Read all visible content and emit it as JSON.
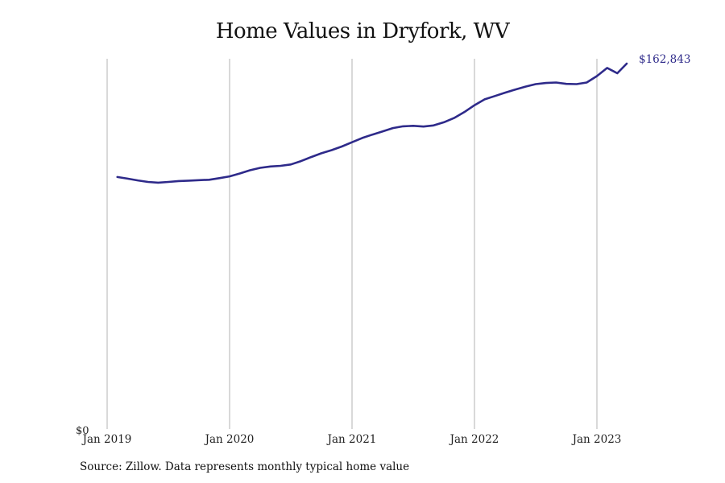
{
  "chart": {
    "title": "Home Values in Dryfork, WV",
    "source": "Source: Zillow. Data represents monthly typical home value",
    "y_zero_label": "$0",
    "end_label": "$162,843",
    "line_color": "#2e2a8a",
    "grid_color": "#b3b3b3"
  },
  "chart_data": {
    "type": "line",
    "title": "Home Values in Dryfork, WV",
    "xlabel": "",
    "ylabel": "",
    "ylim": [
      0,
      162843
    ],
    "grid": "vertical",
    "legend": "none",
    "x_ticks": [
      "Jan 2019",
      "Jan 2020",
      "Jan 2021",
      "Jan 2022",
      "Jan 2023"
    ],
    "y_ticks": [
      "$0"
    ],
    "annotations": [
      "$162,843"
    ],
    "series": [
      {
        "name": "Typical home value",
        "x": [
          "2019-02",
          "2019-03",
          "2019-04",
          "2019-05",
          "2019-06",
          "2019-07",
          "2019-08",
          "2019-09",
          "2019-10",
          "2019-11",
          "2019-12",
          "2020-01",
          "2020-02",
          "2020-03",
          "2020-04",
          "2020-05",
          "2020-06",
          "2020-07",
          "2020-08",
          "2020-09",
          "2020-10",
          "2020-11",
          "2020-12",
          "2021-01",
          "2021-02",
          "2021-03",
          "2021-04",
          "2021-05",
          "2021-06",
          "2021-07",
          "2021-08",
          "2021-09",
          "2021-10",
          "2021-11",
          "2021-12",
          "2022-01",
          "2022-02",
          "2022-03",
          "2022-04",
          "2022-05",
          "2022-06",
          "2022-07",
          "2022-08",
          "2022-09",
          "2022-10",
          "2022-11",
          "2022-12",
          "2023-01",
          "2023-02",
          "2023-03",
          "2023-04"
        ],
        "values": [
          112300,
          111600,
          110800,
          110100,
          109800,
          110100,
          110500,
          110700,
          110900,
          111100,
          111800,
          112600,
          113900,
          115300,
          116400,
          117000,
          117300,
          117900,
          119400,
          121200,
          122900,
          124300,
          125900,
          127800,
          129700,
          131200,
          132600,
          134100,
          134900,
          135100,
          134800,
          135300,
          136700,
          138600,
          141200,
          144300,
          146900,
          148400,
          149900,
          151300,
          152600,
          153700,
          154200,
          154400,
          153800,
          153700,
          154400,
          157300,
          160900,
          162843,
          162843
        ]
      }
    ]
  }
}
